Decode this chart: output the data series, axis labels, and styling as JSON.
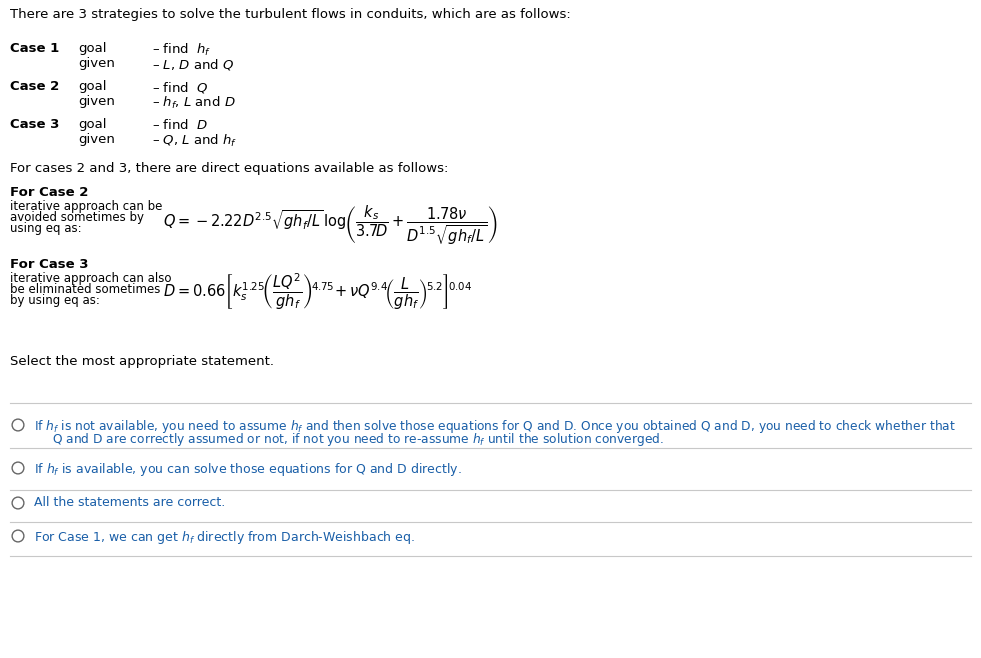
{
  "bg_color": "#ffffff",
  "text_color": "#000000",
  "blue_color": "#1a5fa8",
  "gray_line": "#c8c8c8",
  "title": "There are 3 strategies to solve the turbulent flows in conduits, which are as follows:",
  "case1_label": "Case 1",
  "case1_goal_find": "– find  $h_f$",
  "case1_given_vals": "– $L$, $D$ and $Q$",
  "case2_label": "Case 2",
  "case2_goal_find": "– find  $Q$",
  "case2_given_vals": "– $h_f$, $L$ and $D$",
  "case3_label": "Case 3",
  "case3_goal_find": "– find  $D$",
  "case3_given_vals": "– $Q$, $L$ and $h_f$",
  "goal_word": "goal",
  "given_word": "given",
  "eq_intro": "For cases 2 and 3, there are direct equations available as follows:",
  "fc2_bold": "For Case 2",
  "fc2_desc_line1": "iterative approach can be",
  "fc2_desc_line2": "avoided sometimes by",
  "fc2_desc_line3": "using eq as:",
  "fc3_bold": "For Case 3",
  "fc3_desc_line1": "iterative approach can also",
  "fc3_desc_line2": "be eliminated sometimes",
  "fc3_desc_line3": "by using eq as:",
  "select_text": "Select the most appropriate statement.",
  "opt1_line1": "If $h_f$ is not available, you need to assume $h_f$ and then solve those equations for Q and D. Once you obtained Q and D, you need to check whether that",
  "opt1_line2": "Q and D are correctly assumed or not, if not you need to re-assume $h_f$ until the solution converged.",
  "opt2": "If $h_f$ is available, you can solve those equations for Q and D directly.",
  "opt3": "All the statements are correct.",
  "opt4": "For Case 1, we can get $h_f$ directly from Darch-Weishbach eq.",
  "case2_eq": "$Q = -2.22D^{2.5}\\sqrt{gh_f/L}\\,\\log\\!\\left(\\dfrac{k_s}{3.7D}+\\dfrac{1.78\\nu}{D^{1.5}\\sqrt{gh_f/L}}\\right)$",
  "case3_eq": "$D = 0.66\\left[k_s^{1.25}\\!\\left(\\dfrac{LQ^2}{gh_f}\\right)^{\\!4.75}\\!+\\nu Q^{9.4}\\!\\left(\\dfrac{L}{gh_f}\\right)^{\\!5.2}\\right]^{\\!0.04}$"
}
